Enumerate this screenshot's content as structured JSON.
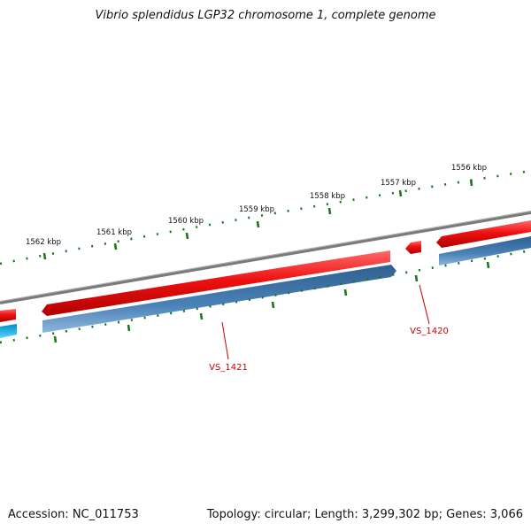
{
  "title": "Vibrio splendidus LGP32 chromosome 1, complete genome",
  "footer": {
    "accession": "Accession: NC_011753",
    "summary": "Topology: circular; Length: 3,299,302 bp; Genes: 3,066"
  },
  "ticks": [
    {
      "label": "1556 kbp"
    },
    {
      "label": "1557 kbp"
    },
    {
      "label": "1558 kbp"
    },
    {
      "label": "1559 kbp"
    },
    {
      "label": "1560 kbp"
    },
    {
      "label": "1561 kbp"
    },
    {
      "label": "1562 kbp"
    }
  ],
  "genes": [
    {
      "label": "VS_1421"
    },
    {
      "label": "VS_1420"
    }
  ],
  "colors": {
    "backbone": "#808080",
    "forward_strand": "#ee1111",
    "reverse_strand": "#3f76ad",
    "reverse_strand_light": "#00b7ee",
    "tick": "#1a7a1a",
    "gene_label": "#cc0000"
  }
}
